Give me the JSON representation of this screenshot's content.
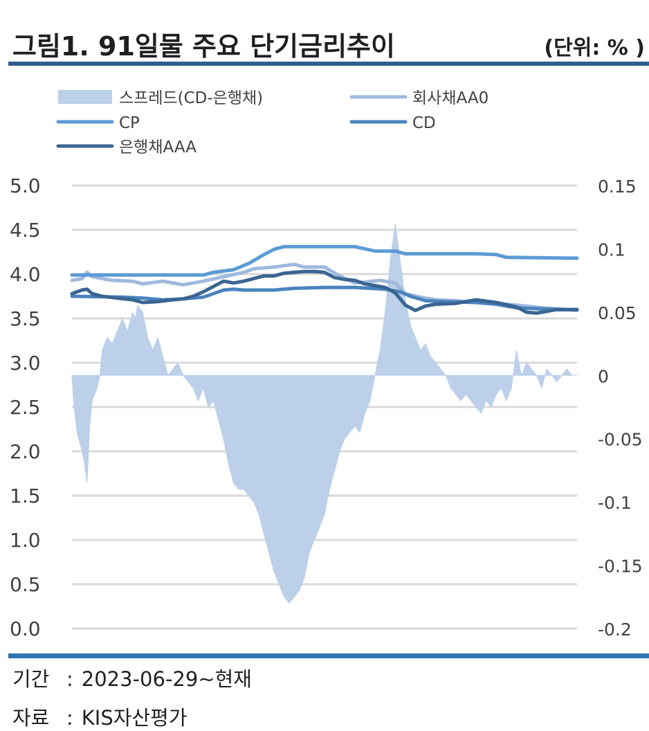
{
  "header": {
    "title": "그림1. 91일물 주요 단기금리추이",
    "unit": "(단위: % )"
  },
  "footer": {
    "period_label": "기간",
    "period_value": "2023-06-29~현재",
    "source_label": "자료",
    "source_value": "KIS자산평가"
  },
  "chart_data": {
    "type": "line",
    "title": "",
    "x_label": "",
    "y_left": {
      "ylim": [
        0,
        5
      ],
      "ticks": [
        "5.0",
        "4.5",
        "4.0",
        "3.5",
        "3.0",
        "2.5",
        "2.0",
        "1.5",
        "1.0",
        "0.5",
        "0.0"
      ]
    },
    "y_right": {
      "ylim": [
        -0.2,
        0.15
      ],
      "ticks": [
        "0.15",
        "0.1",
        "0.05",
        "0",
        "-0.05",
        "-0.1",
        "-0.15",
        "-0.2"
      ]
    },
    "grid": true,
    "legend": [
      {
        "name": "스프레드(CD-은행채)",
        "color": "#bcd0ea",
        "kind": "area"
      },
      {
        "name": "회사채AA0",
        "color": "#9fb9de",
        "kind": "line"
      },
      {
        "name": "CP",
        "color": "#5b9bd5",
        "kind": "line"
      },
      {
        "name": "CD",
        "color": "#4a84bd",
        "kind": "line"
      },
      {
        "name": "은행채AAA",
        "color": "#3a6592",
        "kind": "line"
      }
    ],
    "x_range": [
      0,
      100
    ],
    "series": [
      {
        "name": "회사채AA0",
        "axis": "left",
        "color": "#9fb9de",
        "points": [
          [
            0,
            3.93
          ],
          [
            2,
            3.95
          ],
          [
            3,
            4.02
          ],
          [
            4,
            3.97
          ],
          [
            8,
            3.93
          ],
          [
            12,
            3.92
          ],
          [
            14,
            3.89
          ],
          [
            18,
            3.92
          ],
          [
            22,
            3.88
          ],
          [
            26,
            3.92
          ],
          [
            30,
            3.97
          ],
          [
            34,
            4.02
          ],
          [
            36,
            4.06
          ],
          [
            40,
            4.08
          ],
          [
            44,
            4.11
          ],
          [
            46,
            4.08
          ],
          [
            50,
            4.08
          ],
          [
            53,
            3.98
          ],
          [
            56,
            3.9
          ],
          [
            58,
            3.91
          ],
          [
            61,
            3.93
          ],
          [
            64,
            3.9
          ],
          [
            66,
            3.78
          ],
          [
            69,
            3.74
          ],
          [
            72,
            3.71
          ],
          [
            76,
            3.7
          ],
          [
            80,
            3.68
          ],
          [
            84,
            3.67
          ],
          [
            88,
            3.65
          ],
          [
            90,
            3.64
          ],
          [
            93,
            3.62
          ],
          [
            96,
            3.61
          ],
          [
            98,
            3.6
          ],
          [
            100,
            3.59
          ]
        ]
      },
      {
        "name": "CP",
        "axis": "left",
        "color": "#5b9bd5",
        "points": [
          [
            0,
            3.99
          ],
          [
            10,
            3.99
          ],
          [
            20,
            3.99
          ],
          [
            26,
            3.99
          ],
          [
            28,
            4.02
          ],
          [
            32,
            4.05
          ],
          [
            35,
            4.12
          ],
          [
            38,
            4.22
          ],
          [
            40,
            4.28
          ],
          [
            42,
            4.31
          ],
          [
            56,
            4.31
          ],
          [
            60,
            4.26
          ],
          [
            64,
            4.26
          ],
          [
            66,
            4.23
          ],
          [
            72,
            4.23
          ],
          [
            80,
            4.23
          ],
          [
            84,
            4.22
          ],
          [
            86,
            4.19
          ],
          [
            100,
            4.18
          ]
        ]
      },
      {
        "name": "CD",
        "axis": "left",
        "color": "#4a84bd",
        "points": [
          [
            0,
            3.75
          ],
          [
            10,
            3.74
          ],
          [
            14,
            3.73
          ],
          [
            18,
            3.71
          ],
          [
            22,
            3.72
          ],
          [
            26,
            3.74
          ],
          [
            28,
            3.78
          ],
          [
            30,
            3.82
          ],
          [
            32,
            3.83
          ],
          [
            34,
            3.82
          ],
          [
            40,
            3.82
          ],
          [
            44,
            3.84
          ],
          [
            50,
            3.85
          ],
          [
            56,
            3.85
          ],
          [
            59,
            3.84
          ],
          [
            62,
            3.83
          ],
          [
            65,
            3.8
          ],
          [
            67,
            3.75
          ],
          [
            70,
            3.7
          ],
          [
            74,
            3.69
          ],
          [
            80,
            3.68
          ],
          [
            84,
            3.66
          ],
          [
            88,
            3.62
          ],
          [
            92,
            3.61
          ],
          [
            96,
            3.6
          ],
          [
            100,
            3.6
          ]
        ]
      },
      {
        "name": "은행채AAA",
        "axis": "left",
        "color": "#3a6592",
        "points": [
          [
            0,
            3.78
          ],
          [
            1,
            3.8
          ],
          [
            2,
            3.82
          ],
          [
            3,
            3.83
          ],
          [
            4,
            3.78
          ],
          [
            6,
            3.75
          ],
          [
            9,
            3.73
          ],
          [
            12,
            3.71
          ],
          [
            14,
            3.68
          ],
          [
            17,
            3.69
          ],
          [
            20,
            3.71
          ],
          [
            22,
            3.72
          ],
          [
            24,
            3.75
          ],
          [
            26,
            3.8
          ],
          [
            28,
            3.86
          ],
          [
            30,
            3.92
          ],
          [
            32,
            3.9
          ],
          [
            34,
            3.92
          ],
          [
            36,
            3.95
          ],
          [
            38,
            3.98
          ],
          [
            40,
            3.98
          ],
          [
            42,
            4.01
          ],
          [
            44,
            4.02
          ],
          [
            46,
            4.03
          ],
          [
            48,
            4.03
          ],
          [
            50,
            4.02
          ],
          [
            52,
            3.96
          ],
          [
            54,
            3.94
          ],
          [
            56,
            3.93
          ],
          [
            58,
            3.89
          ],
          [
            60,
            3.87
          ],
          [
            62,
            3.85
          ],
          [
            64,
            3.79
          ],
          [
            66,
            3.65
          ],
          [
            68,
            3.59
          ],
          [
            70,
            3.64
          ],
          [
            72,
            3.66
          ],
          [
            76,
            3.67
          ],
          [
            80,
            3.71
          ],
          [
            84,
            3.68
          ],
          [
            88,
            3.63
          ],
          [
            90,
            3.57
          ],
          [
            92,
            3.56
          ],
          [
            94,
            3.58
          ],
          [
            96,
            3.6
          ],
          [
            100,
            3.6
          ]
        ]
      },
      {
        "name": "스프레드(CD-은행채)",
        "axis": "right",
        "color": "#bcd0ea",
        "points": [
          [
            0,
            0
          ],
          [
            0.3,
            -0.02
          ],
          [
            1,
            -0.045
          ],
          [
            2,
            -0.06
          ],
          [
            2.5,
            -0.07
          ],
          [
            3,
            -0.085
          ],
          [
            3.5,
            -0.04
          ],
          [
            4,
            -0.02
          ],
          [
            5,
            -0.01
          ],
          [
            5.5,
            0.0
          ],
          [
            6,
            0.02
          ],
          [
            7,
            0.03
          ],
          [
            8,
            0.025
          ],
          [
            9,
            0.035
          ],
          [
            10,
            0.045
          ],
          [
            11,
            0.035
          ],
          [
            12,
            0.05
          ],
          [
            12.5,
            0.045
          ],
          [
            13,
            0.055
          ],
          [
            14,
            0.05
          ],
          [
            14.5,
            0.04
          ],
          [
            15,
            0.03
          ],
          [
            16,
            0.02
          ],
          [
            17,
            0.03
          ],
          [
            18,
            0.015
          ],
          [
            19,
            0.0
          ],
          [
            20,
            0.005
          ],
          [
            21,
            0.01
          ],
          [
            22,
            0.0
          ],
          [
            23,
            -0.005
          ],
          [
            24,
            -0.01
          ],
          [
            25,
            -0.02
          ],
          [
            26,
            -0.01
          ],
          [
            27,
            -0.025
          ],
          [
            28,
            -0.02
          ],
          [
            29,
            -0.035
          ],
          [
            30,
            -0.05
          ],
          [
            31,
            -0.07
          ],
          [
            32,
            -0.085
          ],
          [
            33,
            -0.09
          ],
          [
            34,
            -0.09
          ],
          [
            35,
            -0.095
          ],
          [
            36,
            -0.1
          ],
          [
            37,
            -0.11
          ],
          [
            38,
            -0.125
          ],
          [
            39,
            -0.14
          ],
          [
            40,
            -0.155
          ],
          [
            41,
            -0.165
          ],
          [
            42,
            -0.175
          ],
          [
            43,
            -0.18
          ],
          [
            44,
            -0.175
          ],
          [
            45,
            -0.17
          ],
          [
            46,
            -0.16
          ],
          [
            47,
            -0.14
          ],
          [
            48,
            -0.13
          ],
          [
            49,
            -0.12
          ],
          [
            50,
            -0.11
          ],
          [
            51,
            -0.09
          ],
          [
            52,
            -0.075
          ],
          [
            53,
            -0.06
          ],
          [
            54,
            -0.05
          ],
          [
            55,
            -0.045
          ],
          [
            56,
            -0.04
          ],
          [
            57,
            -0.045
          ],
          [
            58,
            -0.03
          ],
          [
            59,
            -0.02
          ],
          [
            60,
            0.0
          ],
          [
            61,
            0.02
          ],
          [
            62,
            0.05
          ],
          [
            63,
            0.09
          ],
          [
            64,
            0.12
          ],
          [
            65,
            0.09
          ],
          [
            66,
            0.06
          ],
          [
            67,
            0.04
          ],
          [
            68,
            0.03
          ],
          [
            69,
            0.02
          ],
          [
            70,
            0.025
          ],
          [
            71,
            0.015
          ],
          [
            72,
            0.01
          ],
          [
            73,
            0.005
          ],
          [
            74,
            0.0
          ],
          [
            75,
            -0.01
          ],
          [
            76,
            -0.015
          ],
          [
            77,
            -0.02
          ],
          [
            78,
            -0.015
          ],
          [
            79,
            -0.02
          ],
          [
            80,
            -0.025
          ],
          [
            81,
            -0.03
          ],
          [
            82,
            -0.02
          ],
          [
            83,
            -0.025
          ],
          [
            84,
            -0.015
          ],
          [
            85,
            -0.01
          ],
          [
            86,
            -0.02
          ],
          [
            87,
            -0.01
          ],
          [
            88,
            0.02
          ],
          [
            89,
            0.0
          ],
          [
            90,
            0.01
          ],
          [
            91,
            0.005
          ],
          [
            92,
            0.0
          ],
          [
            93,
            -0.01
          ],
          [
            94,
            0.005
          ],
          [
            95,
            0.0
          ],
          [
            96,
            -0.005
          ],
          [
            97,
            0.0
          ],
          [
            98,
            0.005
          ],
          [
            99,
            0.0
          ],
          [
            100,
            0.0
          ]
        ]
      }
    ]
  }
}
